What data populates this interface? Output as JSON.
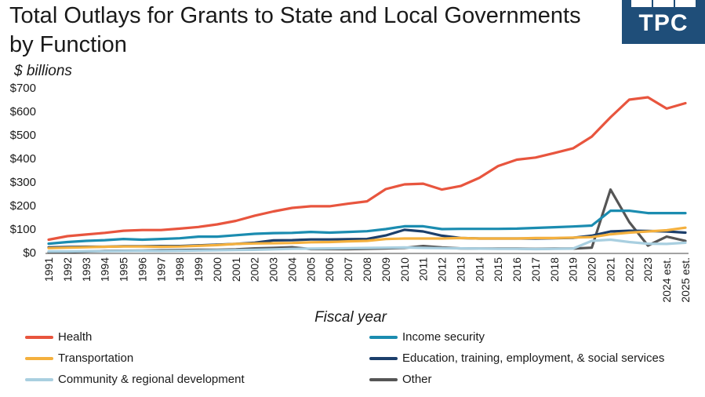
{
  "title": "Total Outlays for Grants to State and Local Governments by Function",
  "logo": {
    "text": "TPC",
    "color": "#1f4e79"
  },
  "chart_data": {
    "type": "line",
    "ylabel": "$ billions",
    "xlabel": "Fiscal year",
    "ylim": [
      0,
      700
    ],
    "yticks": [
      "$0",
      "$100",
      "$200",
      "$300",
      "$400",
      "$500",
      "$600",
      "$700"
    ],
    "ytick_values": [
      0,
      100,
      200,
      300,
      400,
      500,
      600,
      700
    ],
    "grid": false,
    "legend_position": "bottom",
    "categories": [
      "1991",
      "1992",
      "1993",
      "1994",
      "1995",
      "1996",
      "1997",
      "1998",
      "1999",
      "2000",
      "2001",
      "2002",
      "2003",
      "2004",
      "2005",
      "2006",
      "2007",
      "2008",
      "2009",
      "2010",
      "2011",
      "2012",
      "2013",
      "2014",
      "2015",
      "2016",
      "2017",
      "2018",
      "2019",
      "2020",
      "2021",
      "2022",
      "2023",
      "2024 est.",
      "2025 est."
    ],
    "series": [
      {
        "name": "Health",
        "color": "#e8553e",
        "values": [
          55,
          70,
          77,
          84,
          93,
          96,
          96,
          102,
          109,
          120,
          135,
          157,
          175,
          190,
          197,
          197,
          208,
          218,
          270,
          290,
          293,
          268,
          283,
          318,
          368,
          395,
          404,
          423,
          443,
          493,
          575,
          650,
          660,
          612,
          635
        ]
      },
      {
        "name": "Income security",
        "color": "#1b8cb0",
        "values": [
          38,
          45,
          50,
          53,
          58,
          55,
          58,
          61,
          68,
          68,
          74,
          80,
          83,
          84,
          88,
          85,
          88,
          91,
          100,
          112,
          112,
          100,
          101,
          101,
          101,
          102,
          105,
          108,
          111,
          115,
          178,
          178,
          168,
          168,
          168
        ]
      },
      {
        "name": "Transportation",
        "color": "#f4b03e",
        "values": [
          19,
          21,
          23,
          25,
          26,
          26,
          25,
          26,
          29,
          32,
          37,
          39,
          40,
          41,
          44,
          45,
          48,
          50,
          58,
          60,
          60,
          60,
          62,
          60,
          60,
          60,
          62,
          62,
          64,
          66,
          78,
          85,
          90,
          95,
          106
        ]
      },
      {
        "name": "Education, training, employment, & social services",
        "color": "#1c3f6b",
        "values": [
          22,
          24,
          25,
          25,
          27,
          27,
          28,
          28,
          31,
          34,
          37,
          42,
          52,
          53,
          56,
          56,
          57,
          58,
          73,
          97,
          90,
          72,
          62,
          60,
          60,
          60,
          60,
          61,
          63,
          72,
          90,
          93,
          92,
          90,
          85
        ]
      },
      {
        "name": "Community & regional development",
        "color": "#a9cfe0",
        "values": [
          5,
          5,
          6,
          6,
          7,
          8,
          7,
          8,
          9,
          10,
          11,
          12,
          14,
          16,
          17,
          18,
          19,
          20,
          21,
          22,
          20,
          19,
          18,
          17,
          16,
          16,
          15,
          16,
          17,
          50,
          55,
          45,
          38,
          37,
          42
        ]
      },
      {
        "name": "Other",
        "color": "#555555",
        "values": [
          2,
          3,
          5,
          7,
          8,
          9,
          10,
          11,
          12,
          12,
          14,
          18,
          20,
          23,
          15,
          15,
          15,
          16,
          18,
          20,
          28,
          22,
          18,
          17,
          17,
          17,
          16,
          17,
          17,
          21,
          268,
          130,
          30,
          68,
          50
        ]
      }
    ]
  }
}
